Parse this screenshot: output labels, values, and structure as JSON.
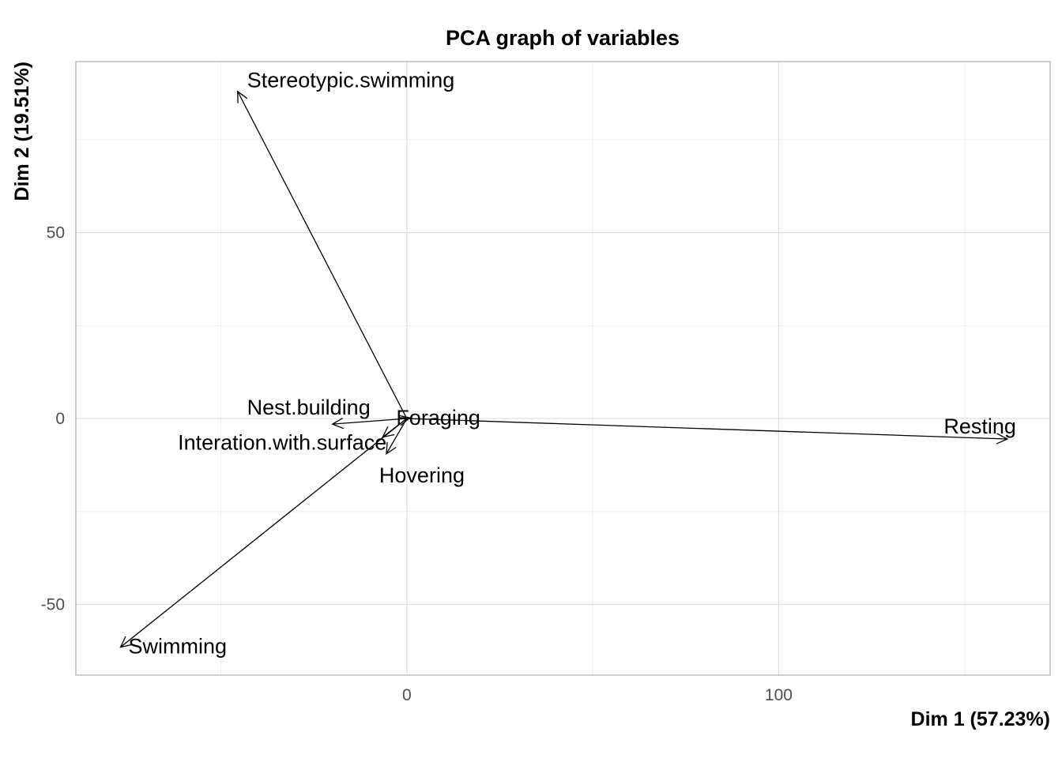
{
  "chart_data": {
    "type": "biplot-variables",
    "title": "PCA graph of variables",
    "xlabel": "Dim 1 (57.23%)",
    "ylabel": "Dim 2 (19.51%)",
    "xlim": [
      -89,
      173
    ],
    "ylim": [
      -69,
      96
    ],
    "x_ticks": [
      0,
      100
    ],
    "y_ticks": [
      -50,
      0,
      50
    ],
    "x_minor": [
      -50,
      50,
      150
    ],
    "y_minor": [
      -25,
      25,
      75
    ],
    "grid": true,
    "variables": [
      {
        "name": "Stereotypic.swimming",
        "x": -45.5,
        "y": 88.0,
        "label_anchor": "start"
      },
      {
        "name": "Nest.building",
        "x": -20.0,
        "y": -1.5,
        "label_anchor": "end"
      },
      {
        "name": "Foraging",
        "x": 0.8,
        "y": 0.2,
        "label_anchor": "middle"
      },
      {
        "name": "Interation.with.surface",
        "x": -6.5,
        "y": -5.0,
        "label_anchor": "end"
      },
      {
        "name": "Hovering",
        "x": -5.5,
        "y": -9.5,
        "label_anchor": "middle"
      },
      {
        "name": "Resting",
        "x": 161.5,
        "y": -5.5,
        "label_anchor": "end"
      },
      {
        "name": "Swimming",
        "x": -77.0,
        "y": -61.5,
        "label_anchor": "start"
      }
    ]
  }
}
